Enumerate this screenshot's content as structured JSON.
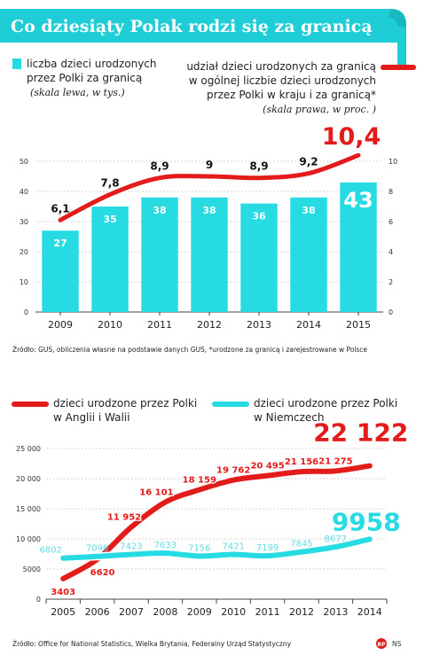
{
  "header": {
    "title": "Co dziesiąty Polak rodzi się za granicą"
  },
  "colors": {
    "accent": "#1ecdd6",
    "teal": "#27dbe3",
    "red": "#e41b1b",
    "grid": "#bfbfbf",
    "text": "#222222"
  },
  "chart_data": [
    {
      "type": "bar+line",
      "legend": {
        "bar_lines": [
          "liczba dzieci urodzonych",
          "przez Polki za granicą"
        ],
        "bar_note": "(skala lewa, w tys.)",
        "line_lines": [
          "udział dzieci urodzonych za granicą",
          "w ogólnej liczbie dzieci urodzonych",
          "przez Polki w kraju i za granicą*"
        ],
        "line_note": "(skala prawa, w proc. )"
      },
      "categories": [
        "2009",
        "2010",
        "2011",
        "2012",
        "2013",
        "2014",
        "2015"
      ],
      "bars": {
        "values": [
          27,
          35,
          38,
          38,
          36,
          38,
          43
        ],
        "labels": [
          "27",
          "35",
          "38",
          "38",
          "36",
          "38",
          "43"
        ]
      },
      "line": {
        "values": [
          6.1,
          7.8,
          8.9,
          9,
          8.9,
          9.2,
          10.4
        ],
        "labels": [
          "6,1",
          "7,8",
          "8,9",
          "9",
          "8,9",
          "9,2",
          "10,4"
        ]
      },
      "y_left": {
        "min": 0,
        "max": 50,
        "ticks": [
          "0",
          "10",
          "20",
          "30",
          "40",
          "50"
        ]
      },
      "y_right": {
        "min": 0,
        "max": 10,
        "ticks": [
          "0",
          "2",
          "4",
          "6",
          "8",
          "10"
        ]
      },
      "grid": true,
      "source": "Źródło: GUS, obliczenia własne na podstawie danych GUS, *urodzone za granicą i zarejestrowane w Polsce"
    },
    {
      "type": "line",
      "legend": {
        "uk_lines": [
          "dzieci urodzone przez Polki",
          "w Anglii i Walii"
        ],
        "de_lines": [
          "dzieci urodzone przez Polki",
          "w Niemczech"
        ]
      },
      "x": [
        "2005",
        "2006",
        "2007",
        "2008",
        "2009",
        "2010",
        "2011",
        "2012",
        "2013",
        "2014"
      ],
      "series": [
        {
          "values": [
            3403,
            6620,
            11952,
            16101,
            18159,
            19762,
            20495,
            21156,
            21275,
            22122
          ],
          "labels": [
            "3403",
            "6620",
            "11 952",
            "16 101",
            "18 159",
            "19 762",
            "20 495",
            "21 156",
            "21 275",
            "22 122"
          ]
        },
        {
          "values": [
            6802,
            7098,
            7423,
            7633,
            7156,
            7421,
            7199,
            7845,
            8677,
            9958
          ],
          "labels": [
            "6802",
            "7098",
            "7423",
            "7633",
            "7156",
            "7421",
            "7199",
            "7845",
            "8677",
            "9958"
          ]
        }
      ],
      "y": {
        "min": 0,
        "max": 25000,
        "ticks": [
          "0",
          "5000",
          "10 000",
          "15 000",
          "20 000",
          "25 000"
        ]
      },
      "grid": true,
      "source": "Źródło: Office for National Statistics, Wielka Brytania, Federalny Urząd Statystyczny"
    }
  ],
  "footer": {
    "brand_mark": "RP",
    "credit": "NS"
  }
}
